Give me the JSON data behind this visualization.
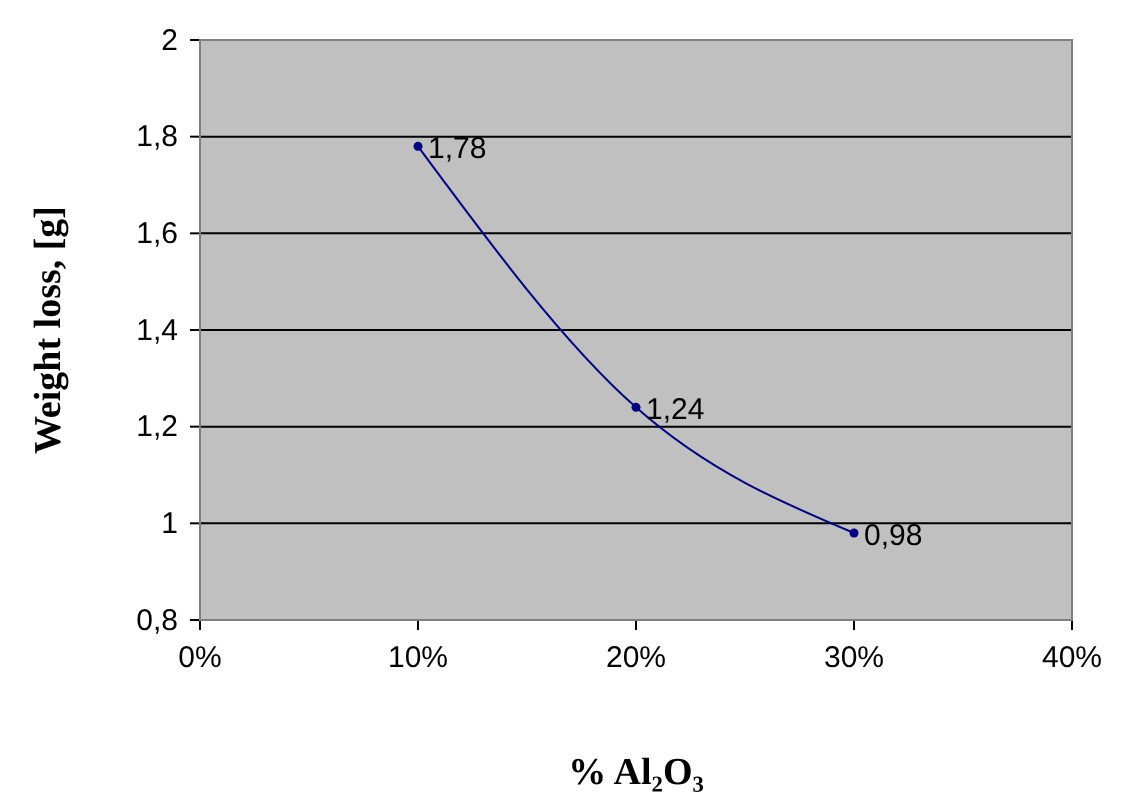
{
  "chart_data": {
    "type": "line",
    "xlabel": "% Al₂O₃",
    "ylabel": "Weight loss, [g]",
    "x": [
      10,
      20,
      30
    ],
    "series": [
      {
        "color": "#000080",
        "values": [
          1.78,
          1.24,
          0.98
        ],
        "value_labels": [
          "1,78",
          "1,24",
          "0,98"
        ]
      }
    ],
    "xlim": [
      0,
      40
    ],
    "xticks": [
      {
        "value": 0,
        "label": "0%"
      },
      {
        "value": 10,
        "label": "10%"
      },
      {
        "value": 20,
        "label": "20%"
      },
      {
        "value": 30,
        "label": "30%"
      },
      {
        "value": 40,
        "label": "40%"
      }
    ],
    "ylim": [
      0.8,
      2
    ],
    "yticks": [
      {
        "value": 0.8,
        "label": "0,8"
      },
      {
        "value": 1,
        "label": "1"
      },
      {
        "value": 1.2,
        "label": "1,2"
      },
      {
        "value": 1.4,
        "label": "1,4"
      },
      {
        "value": 1.6,
        "label": "1,6"
      },
      {
        "value": 1.8,
        "label": "1,8"
      },
      {
        "value": 2,
        "label": "2"
      }
    ],
    "grid": "y",
    "marker": "circle",
    "line_style": "solid"
  }
}
